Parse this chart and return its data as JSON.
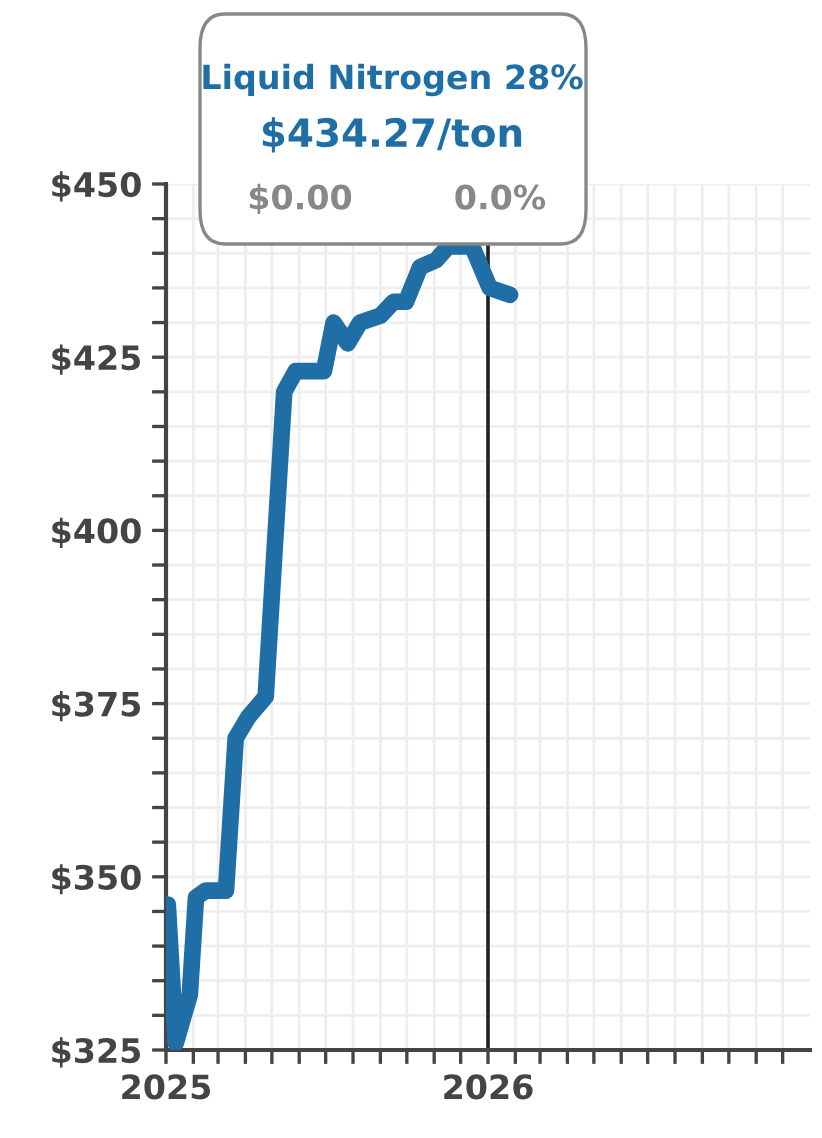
{
  "chart_data": {
    "type": "line",
    "title": "Liquid Nitrogen 28%",
    "subtitle": "$434.27/ton",
    "annotations": [
      "$0.00",
      "0.0%"
    ],
    "x": [
      "2025-01-03",
      "2025-01-12",
      "2025-01-28",
      "2025-02-04",
      "2025-02-15",
      "2025-03-10",
      "2025-03-21",
      "2025-04-04",
      "2025-04-24",
      "2025-05-15",
      "2025-05-28",
      "2025-06-29",
      "2025-07-10",
      "2025-07-26",
      "2025-08-09",
      "2025-09-01",
      "2025-09-16",
      "2025-09-30",
      "2025-10-16",
      "2025-11-03",
      "2025-11-17",
      "2025-12-14",
      "2026-01-03",
      "2026-01-26"
    ],
    "series": [
      {
        "color": "#1f6fa6",
        "values": [
          346,
          326,
          333,
          347,
          348,
          348,
          370,
          373,
          376,
          420,
          423,
          423,
          430,
          427,
          430,
          431,
          433,
          433,
          438,
          439,
          441,
          441,
          435,
          434
        ]
      }
    ],
    "xlim": [
      "2025-01-01",
      "2027-01-01"
    ],
    "xticks": [
      {
        "value": "2025-01-01",
        "label": "2025"
      },
      {
        "value": "2025-02-01",
        "label": null
      },
      {
        "value": "2025-03-01",
        "label": null
      },
      {
        "value": "2025-04-01",
        "label": null
      },
      {
        "value": "2025-05-01",
        "label": null
      },
      {
        "value": "2025-06-01",
        "label": null
      },
      {
        "value": "2025-07-01",
        "label": null
      },
      {
        "value": "2025-08-01",
        "label": null
      },
      {
        "value": "2025-09-01",
        "label": null
      },
      {
        "value": "2025-10-01",
        "label": null
      },
      {
        "value": "2025-11-01",
        "label": null
      },
      {
        "value": "2025-12-01",
        "label": null
      },
      {
        "value": "2026-01-01",
        "label": "2026"
      },
      {
        "value": "2026-02-01",
        "label": null
      },
      {
        "value": "2026-03-01",
        "label": null
      },
      {
        "value": "2026-04-01",
        "label": null
      },
      {
        "value": "2026-05-01",
        "label": null
      },
      {
        "value": "2026-06-01",
        "label": null
      },
      {
        "value": "2026-07-01",
        "label": null
      },
      {
        "value": "2026-08-01",
        "label": null
      },
      {
        "value": "2026-09-01",
        "label": null
      },
      {
        "value": "2026-10-01",
        "label": null
      },
      {
        "value": "2026-11-01",
        "label": null
      },
      {
        "value": "2026-12-01",
        "label": null
      }
    ],
    "ylim": [
      325,
      450
    ],
    "yticks": [
      {
        "value": 325,
        "label": "$325"
      },
      {
        "value": 330,
        "label": null
      },
      {
        "value": 335,
        "label": null
      },
      {
        "value": 340,
        "label": null
      },
      {
        "value": 345,
        "label": null
      },
      {
        "value": 350,
        "label": "$350"
      },
      {
        "value": 355,
        "label": null
      },
      {
        "value": 360,
        "label": null
      },
      {
        "value": 365,
        "label": null
      },
      {
        "value": 370,
        "label": null
      },
      {
        "value": 375,
        "label": "$375"
      },
      {
        "value": 380,
        "label": null
      },
      {
        "value": 385,
        "label": null
      },
      {
        "value": 390,
        "label": null
      },
      {
        "value": 395,
        "label": null
      },
      {
        "value": 400,
        "label": "$400"
      },
      {
        "value": 405,
        "label": null
      },
      {
        "value": 410,
        "label": null
      },
      {
        "value": 415,
        "label": null
      },
      {
        "value": 420,
        "label": null
      },
      {
        "value": 425,
        "label": "$425"
      },
      {
        "value": 430,
        "label": null
      },
      {
        "value": 435,
        "label": null
      },
      {
        "value": 440,
        "label": null
      },
      {
        "value": 445,
        "label": null
      },
      {
        "value": 450,
        "label": "$450"
      }
    ],
    "ref_lines": [
      {
        "axis": "x",
        "value": "2026-01-01",
        "color": "#222222"
      }
    ],
    "grid": true,
    "marker": "none",
    "line_style": "solid",
    "legend": false
  }
}
